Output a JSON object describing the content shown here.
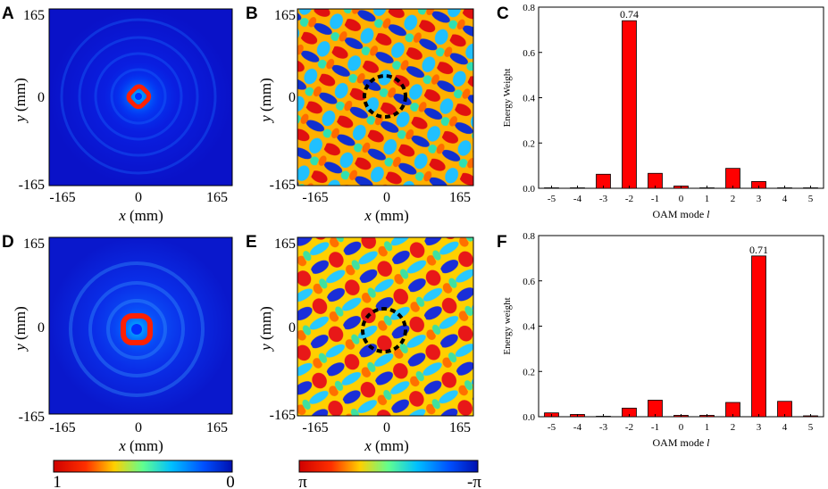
{
  "panels": {
    "A": {
      "letter": "A"
    },
    "B": {
      "letter": "B"
    },
    "C": {
      "letter": "C"
    },
    "D": {
      "letter": "D"
    },
    "E": {
      "letter": "E"
    },
    "F": {
      "letter": "F"
    }
  },
  "map_axes": {
    "x_label_var": "x",
    "y_label_var": "y",
    "unit": " (mm)",
    "ticks": [
      "-165",
      "0",
      "165"
    ],
    "y_ticks": [
      "165",
      "0",
      "-165"
    ]
  },
  "colorbars": {
    "intensity": {
      "left": "1",
      "right": "0"
    },
    "phase": {
      "left": "π",
      "right": "-π"
    }
  },
  "chart_data": [
    {
      "id": "C",
      "type": "bar",
      "categories": [
        "-5",
        "-4",
        "-3",
        "-2",
        "-1",
        "0",
        "1",
        "2",
        "3",
        "4",
        "5"
      ],
      "values": [
        0.002,
        0.002,
        0.062,
        0.74,
        0.066,
        0.01,
        0.002,
        0.088,
        0.03,
        0.002,
        0.002
      ],
      "annotation": {
        "index": 3,
        "text": "0.74"
      },
      "title": "",
      "xlabel": "OAM mode ",
      "xlabel_var": "l",
      "ylabel": "Energy Weight",
      "ylim": [
        0,
        0.8
      ],
      "yticks": [
        "0.0",
        "0.2",
        "0.4",
        "0.6",
        "0.8"
      ],
      "bar_color": "#ff0000"
    },
    {
      "id": "F",
      "type": "bar",
      "categories": [
        "-5",
        "-4",
        "-3",
        "-2",
        "-1",
        "0",
        "1",
        "2",
        "3",
        "4",
        "5"
      ],
      "values": [
        0.017,
        0.01,
        0.002,
        0.038,
        0.073,
        0.006,
        0.006,
        0.063,
        0.71,
        0.068,
        0.004
      ],
      "annotation": {
        "index": 8,
        "text": "0.71"
      },
      "title": "",
      "xlabel": "OAM mode ",
      "xlabel_var": "l",
      "ylabel": "Energy weight",
      "ylim": [
        0,
        0.8
      ],
      "yticks": [
        "0.0",
        "0.2",
        "0.4",
        "0.6",
        "0.8"
      ],
      "bar_color": "#ff0000"
    }
  ]
}
